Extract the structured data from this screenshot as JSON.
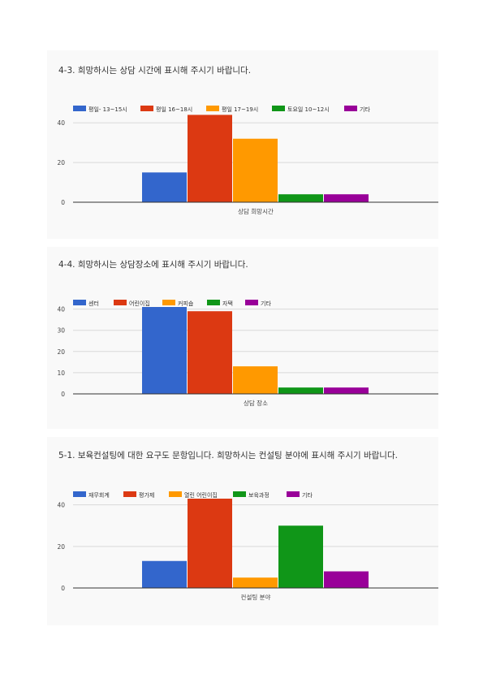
{
  "chart_data": [
    {
      "type": "bar",
      "title": "4-3. 희망하시는 상담 시간에 표시해 주시기 바랍니다.",
      "xlabel": "상담 희망시간",
      "ylim": [
        0,
        45
      ],
      "yticks": [
        0,
        20,
        40
      ],
      "legend_position": "top-left",
      "series": [
        {
          "name": "평일- 13~15시",
          "color": "#3366cc",
          "values": [
            15
          ]
        },
        {
          "name": "평일 16~18시",
          "color": "#dc3912",
          "values": [
            44
          ]
        },
        {
          "name": "평일 17~19시",
          "color": "#ff9900",
          "values": [
            32
          ]
        },
        {
          "name": "토요일 10~12시",
          "color": "#109618",
          "values": [
            4
          ]
        },
        {
          "name": "기타",
          "color": "#990099",
          "values": [
            4
          ]
        }
      ]
    },
    {
      "type": "bar",
      "title": "4-4. 희망하시는 상담장소에 표시해 주시기 바랍니다.",
      "xlabel": "상담 장소",
      "ylim": [
        0,
        41
      ],
      "yticks": [
        0,
        10,
        20,
        30,
        40
      ],
      "legend_position": "top-left",
      "series": [
        {
          "name": "센터",
          "color": "#3366cc",
          "values": [
            41
          ]
        },
        {
          "name": "어린이집",
          "color": "#dc3912",
          "values": [
            39
          ]
        },
        {
          "name": "커피숍",
          "color": "#ff9900",
          "values": [
            13
          ]
        },
        {
          "name": "자택",
          "color": "#109618",
          "values": [
            3
          ]
        },
        {
          "name": "기타",
          "color": "#990099",
          "values": [
            3
          ]
        }
      ]
    },
    {
      "type": "bar",
      "title": "5-1. 보육컨설팅에 대한 요구도 문항입니다. 희망하시는 컨설팅 분야에 표시해 주시기 바랍니다.",
      "xlabel": "컨설팅 분야",
      "ylim": [
        0,
        43
      ],
      "yticks": [
        0,
        20,
        40
      ],
      "legend_position": "top-left",
      "series": [
        {
          "name": "재무회계",
          "color": "#3366cc",
          "values": [
            13
          ]
        },
        {
          "name": "평가제",
          "color": "#dc3912",
          "values": [
            43
          ]
        },
        {
          "name": "열린 어린이집",
          "color": "#ff9900",
          "values": [
            5
          ]
        },
        {
          "name": "보육과정",
          "color": "#109618",
          "values": [
            30
          ]
        },
        {
          "name": "기타",
          "color": "#990099",
          "values": [
            8
          ]
        }
      ]
    }
  ]
}
